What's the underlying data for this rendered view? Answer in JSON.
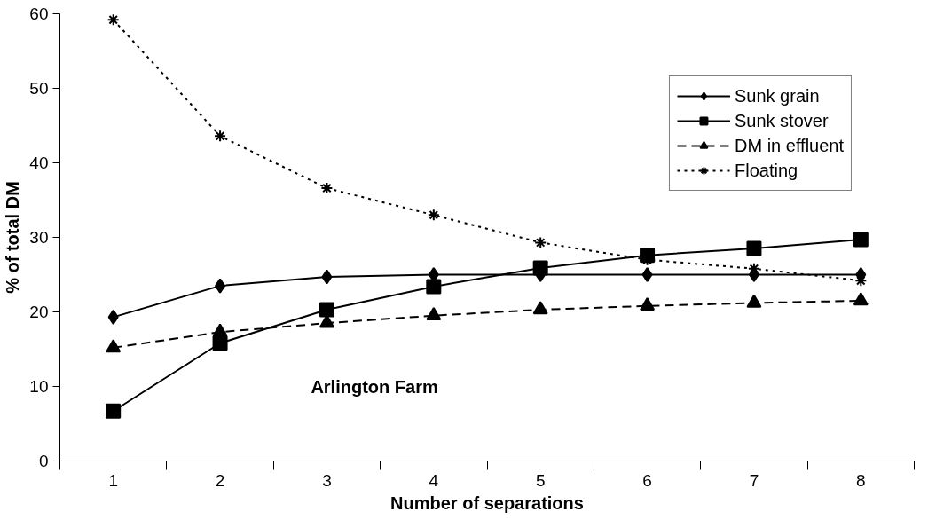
{
  "chart_data": {
    "type": "line",
    "xlabel": "Number of separations",
    "ylabel": "% of total DM",
    "categories": [
      "1",
      "2",
      "3",
      "4",
      "5",
      "6",
      "7",
      "8"
    ],
    "series": [
      {
        "name": "Sunk grain",
        "color": "#000000",
        "marker": "diamond",
        "line_style": "solid",
        "values": [
          19.3,
          23.5,
          24.7,
          25.0,
          25.0,
          25.0,
          25.0,
          25.0
        ]
      },
      {
        "name": "Sunk stover",
        "color": "#000000",
        "marker": "square",
        "line_style": "solid",
        "values": [
          6.7,
          15.8,
          20.3,
          23.4,
          25.9,
          27.6,
          28.5,
          29.7
        ]
      },
      {
        "name": "DM in effluent",
        "color": "#000000",
        "marker": "triangle",
        "line_style": "dashed",
        "values": [
          15.2,
          17.3,
          18.5,
          19.5,
          20.3,
          20.8,
          21.2,
          21.5
        ]
      },
      {
        "name": "Floating",
        "color": "#000000",
        "marker": "cross",
        "line_style": "dotted",
        "values": [
          59.2,
          43.6,
          36.6,
          33.0,
          29.3,
          27.0,
          25.8,
          24.2
        ]
      }
    ],
    "ylim": [
      0,
      60
    ],
    "yticks": [
      0,
      10,
      20,
      30,
      40,
      50,
      60
    ],
    "annotations": [
      "Arlington Farm"
    ],
    "grid": false,
    "legend": "top right"
  }
}
